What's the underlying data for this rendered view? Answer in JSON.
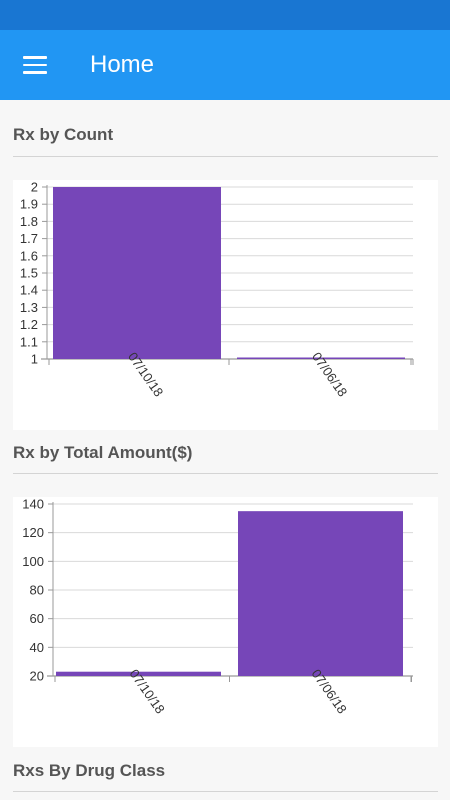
{
  "app_bar": {
    "title": "Home",
    "menu_icon": "hamburger-menu-icon"
  },
  "colors": {
    "status_bar": "#1976d2",
    "app_bar": "#2196f3",
    "bar": "#7646b8",
    "background": "#f7f7f7"
  },
  "sections": {
    "count": {
      "title": "Rx by Count"
    },
    "amount": {
      "title": "Rx by Total Amount($)"
    },
    "drug_class": {
      "title": "Rxs By Drug Class"
    }
  },
  "chart_data": [
    {
      "type": "bar",
      "categories": [
        "07/10/18",
        "07/06/18"
      ],
      "values": [
        2,
        1
      ],
      "ylim": [
        1,
        2
      ],
      "yticks": [
        1,
        1.1,
        1.2,
        1.3,
        1.4,
        1.5,
        1.6,
        1.7,
        1.8,
        1.9,
        2
      ],
      "grid": true
    },
    {
      "type": "bar",
      "categories": [
        "07/10/18",
        "07/06/18"
      ],
      "values": [
        23,
        135
      ],
      "ylim": [
        20,
        140
      ],
      "yticks": [
        20,
        40,
        60,
        80,
        100,
        120,
        140
      ],
      "grid": true
    }
  ]
}
